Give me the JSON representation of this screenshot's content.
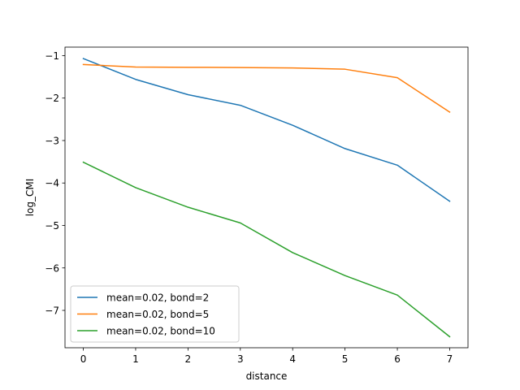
{
  "chart_data": {
    "type": "line",
    "title": "",
    "xlabel": "distance",
    "ylabel": "log_CMI",
    "xlim": [
      -0.35,
      7.35
    ],
    "ylim": [
      -7.88,
      -0.8
    ],
    "xticks": [
      0,
      1,
      2,
      3,
      4,
      5,
      6,
      7
    ],
    "yticks": [
      -7,
      -6,
      -5,
      -4,
      -3,
      -2,
      -1
    ],
    "xtick_labels": [
      "0",
      "1",
      "2",
      "3",
      "4",
      "5",
      "6",
      "7"
    ],
    "ytick_labels": [
      "−7",
      "−6",
      "−5",
      "−4",
      "−3",
      "−2",
      "−1"
    ],
    "grid": false,
    "legend_position": "lower-left",
    "x": [
      0,
      1,
      2,
      3,
      4,
      5,
      6,
      7
    ],
    "series": [
      {
        "name": "mean=0.02, bond=2",
        "color": "#1f77b4",
        "values": [
          -1.07,
          -1.56,
          -1.92,
          -2.17,
          -2.64,
          -3.19,
          -3.58,
          -4.43
        ]
      },
      {
        "name": "mean=0.02, bond=5",
        "color": "#ff7f0e",
        "values": [
          -1.21,
          -1.27,
          -1.275,
          -1.28,
          -1.29,
          -1.32,
          -1.52,
          -2.33
        ]
      },
      {
        "name": "mean=0.02, bond=10",
        "color": "#2ca02c",
        "values": [
          -3.51,
          -4.11,
          -4.57,
          -4.94,
          -5.64,
          -6.18,
          -6.64,
          -7.62
        ]
      }
    ]
  }
}
